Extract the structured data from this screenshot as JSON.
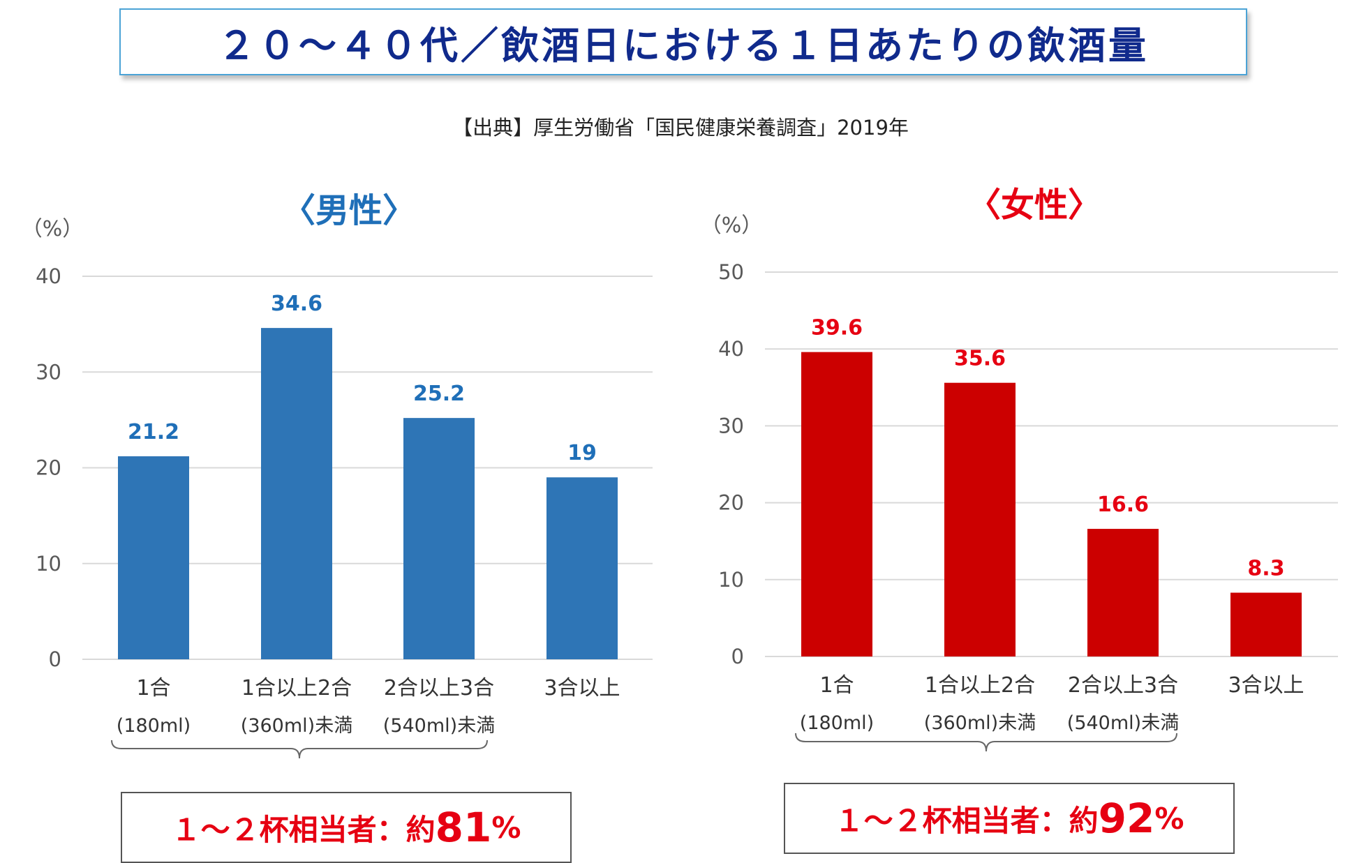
{
  "title": "２０～４０代／飲酒日における１日あたりの飲酒量",
  "source": "【出典】厚生労働省「国民健康栄養調査」2019年",
  "colors": {
    "male": "#2e75b6",
    "female": "#cc0000",
    "male_label": "#1f6fb8",
    "female_label": "#e60012",
    "grid": "#d9d9d9",
    "axis_text": "#595959"
  },
  "chart_data": [
    {
      "type": "bar",
      "title": "〈男性〉",
      "ylabel": "（%）",
      "ylim": [
        0,
        40
      ],
      "yticks": [
        "0",
        "10",
        "20",
        "30",
        "40"
      ],
      "categories": [
        [
          "1合",
          "(180ml)"
        ],
        [
          "1合以上2合",
          "(360ml)未満"
        ],
        [
          "2合以上3合",
          "(540ml)未満"
        ],
        [
          "3合以上"
        ]
      ],
      "values": [
        21.2,
        34.6,
        25.2,
        19
      ],
      "value_labels": [
        "21.2",
        "34.6",
        "25.2",
        "19"
      ]
    },
    {
      "type": "bar",
      "title": "〈女性〉",
      "ylabel": "（%）",
      "ylim": [
        0,
        50
      ],
      "yticks": [
        "0",
        "10",
        "20",
        "30",
        "40",
        "50"
      ],
      "categories": [
        [
          "1合",
          "(180ml)"
        ],
        [
          "1合以上2合",
          "(360ml)未満"
        ],
        [
          "2合以上3合",
          "(540ml)未満"
        ],
        [
          "3合以上"
        ]
      ],
      "values": [
        39.6,
        35.6,
        16.6,
        8.3
      ],
      "value_labels": [
        "39.6",
        "35.6",
        "16.6",
        "8.3"
      ]
    }
  ],
  "summaries": [
    {
      "prefix": "１～２杯相当者：約",
      "number": "81",
      "unit": "%"
    },
    {
      "prefix": "１～２杯相当者：約",
      "number": "92",
      "unit": "%"
    }
  ]
}
